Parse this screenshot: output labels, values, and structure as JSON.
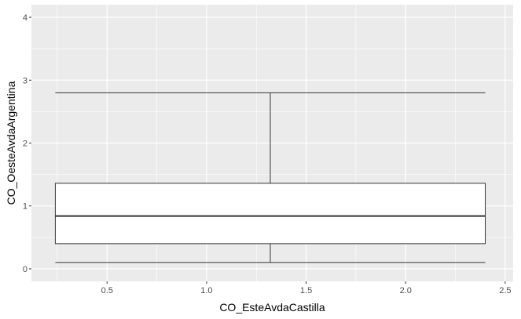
{
  "chart_data": {
    "type": "boxplot",
    "xlabel": "CO_EsteAvdaCastilla",
    "ylabel": "CO_OesteAvdaArgentina",
    "xlim": [
      0.12,
      2.54
    ],
    "ylim": [
      -0.2,
      4.2
    ],
    "x_ticks": [
      0.5,
      1.0,
      1.5,
      2.0,
      2.5
    ],
    "x_tick_labels": [
      "0.5",
      "1.0",
      "1.5",
      "2.0",
      "2.5"
    ],
    "y_ticks": [
      0,
      1,
      2,
      3,
      4
    ],
    "y_tick_labels": [
      "0",
      "1",
      "2",
      "3",
      "4"
    ],
    "grid": true,
    "box": {
      "x_start": 0.24,
      "x_end": 2.4,
      "x_center": 1.32,
      "whisker_low": 0.1,
      "q1": 0.4,
      "median": 0.84,
      "q3": 1.36,
      "whisker_high": 2.8
    },
    "colors": {
      "panel_background": "#ebebeb",
      "grid_major": "#ffffff",
      "box_fill": "#ffffff",
      "box_line": "#333333"
    }
  }
}
